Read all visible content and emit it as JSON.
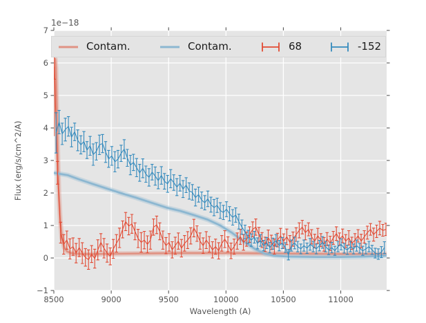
{
  "colors": {
    "red": "#E24A33",
    "blue": "#348ABD",
    "red_contam": "#E09384",
    "blue_contam": "#8CB7D1",
    "axes_bg": "#E5E5E5",
    "grid": "#FFFFFF",
    "tick": "#555555",
    "text": "#262626",
    "figure_bg": "#FFFFFF"
  },
  "axes": {
    "offset_text": "1e−18",
    "xlabel": "Wavelength (A)",
    "ylabel": "Flux (erg/s/cm^2/A)"
  },
  "legend": {
    "items": [
      {
        "label": "Contam.",
        "glyph": "line",
        "color_key": "red_contam"
      },
      {
        "label": "Contam.",
        "glyph": "line",
        "color_key": "blue_contam"
      },
      {
        "label": "68",
        "glyph": "errorbar",
        "color_key": "red"
      },
      {
        "label": "-152",
        "glyph": "errorbar",
        "color_key": "blue"
      }
    ]
  },
  "chart_data": {
    "type": "line",
    "title": "",
    "xlabel": "Wavelength (A)",
    "ylabel": "Flux (erg/s/cm^2/A)",
    "y_scale_offset": "1e−18",
    "xlim": [
      8500,
      11400
    ],
    "ylim": [
      -1,
      7
    ],
    "xticks": [
      8500,
      9000,
      9500,
      10000,
      10500,
      11000
    ],
    "yticks": [
      -1,
      0,
      1,
      2,
      3,
      4,
      5,
      6,
      7
    ],
    "grid": true,
    "legend_position": "upper center horizontal",
    "series": [
      {
        "name": "Contam.",
        "type": "line",
        "color_key": "red_contam",
        "x": [
          8500,
          8506,
          8512,
          8518,
          8526,
          8534,
          8544,
          8556,
          8570,
          8590,
          8615,
          8650,
          8700,
          8800,
          9000,
          9300,
          9600,
          10000,
          10400,
          10800,
          11100,
          11400
        ],
        "y": [
          3.75,
          5.3,
          6.12,
          5.85,
          4.6,
          3.2,
          2.0,
          1.15,
          0.62,
          0.33,
          0.2,
          0.15,
          0.13,
          0.12,
          0.13,
          0.14,
          0.15,
          0.15,
          0.14,
          0.13,
          0.12,
          0.12
        ]
      },
      {
        "name": "Contam.",
        "type": "line",
        "color_key": "blue_contam",
        "x": [
          8500,
          8620,
          8720,
          8820,
          8950,
          9080,
          9220,
          9350,
          9480,
          9600,
          9720,
          9840,
          9950,
          10050,
          10150,
          10250,
          10340,
          10420,
          10550,
          10800,
          11000,
          11200,
          11350,
          11400
        ],
        "y": [
          2.62,
          2.55,
          2.42,
          2.3,
          2.15,
          2.0,
          1.85,
          1.7,
          1.55,
          1.45,
          1.32,
          1.18,
          1.0,
          0.78,
          0.52,
          0.28,
          0.13,
          0.07,
          0.04,
          0.03,
          0.03,
          0.04,
          0.06,
          0.08
        ]
      },
      {
        "name": "68",
        "type": "errorbar",
        "color_key": "red",
        "x_start": 8505,
        "x_step": 27,
        "y": [
          5.88,
          2.62,
          0.78,
          0.42,
          0.55,
          0.28,
          0.35,
          0.15,
          0.32,
          0.15,
          0.02,
          -0.05,
          0.12,
          -0.02,
          0.25,
          0.48,
          0.3,
          0.15,
          0.05,
          0.28,
          0.45,
          0.62,
          0.88,
          1.12,
          0.98,
          1.05,
          0.82,
          0.6,
          0.48,
          0.55,
          0.42,
          0.55,
          0.95,
          1.02,
          0.82,
          0.55,
          0.38,
          0.48,
          0.25,
          0.38,
          0.52,
          0.3,
          0.45,
          0.55,
          0.68,
          0.92,
          0.75,
          0.52,
          0.38,
          0.55,
          0.42,
          0.25,
          0.35,
          0.22,
          0.45,
          0.58,
          0.42,
          0.22,
          0.35,
          0.52,
          0.65,
          0.48,
          0.58,
          0.72,
          0.88,
          0.95,
          0.72,
          0.55,
          0.42,
          0.62,
          0.48,
          0.35,
          0.55,
          0.68,
          0.52,
          0.65,
          0.48,
          0.58,
          0.72,
          0.85,
          0.95,
          0.78,
          0.88,
          0.65,
          0.52,
          0.68,
          0.55,
          0.42,
          0.58,
          0.45,
          0.62,
          0.75,
          0.58,
          0.68,
          0.52,
          0.62,
          0.45,
          0.55,
          0.68,
          0.52,
          0.65,
          0.78,
          0.88,
          0.72,
          0.82,
          0.92,
          0.85,
          0.88
        ],
        "yerr": [
          0.38,
          0.35,
          0.32,
          0.3,
          0.28,
          0.31,
          0.27,
          0.3,
          0.28,
          0.32,
          0.27,
          0.3,
          0.26,
          0.29,
          0.31,
          0.27,
          0.3,
          0.28,
          0.26,
          0.29,
          0.27,
          0.3,
          0.26,
          0.28,
          0.27,
          0.29,
          0.26,
          0.28,
          0.3,
          0.27,
          0.26,
          0.28,
          0.25,
          0.27,
          0.26,
          0.28,
          0.25,
          0.27,
          0.25,
          0.26,
          0.25,
          0.27,
          0.24,
          0.26,
          0.25,
          0.27,
          0.24,
          0.25,
          0.24,
          0.26,
          0.24,
          0.25,
          0.23,
          0.25,
          0.24,
          0.26,
          0.23,
          0.24,
          0.23,
          0.25,
          0.23,
          0.24,
          0.22,
          0.24,
          0.23,
          0.25,
          0.22,
          0.23,
          0.22,
          0.24,
          0.22,
          0.23,
          0.21,
          0.23,
          0.22,
          0.24,
          0.21,
          0.22,
          0.21,
          0.23,
          0.21,
          0.22,
          0.2,
          0.22,
          0.21,
          0.23,
          0.2,
          0.21,
          0.2,
          0.22,
          0.2,
          0.21,
          0.19,
          0.21,
          0.2,
          0.22,
          0.19,
          0.2,
          0.19,
          0.21,
          0.19,
          0.2,
          0.18,
          0.2,
          0.19,
          0.21,
          0.18,
          0.19
        ]
      },
      {
        "name": "-152",
        "type": "errorbar",
        "color_key": "blue",
        "x_start": 8519,
        "x_step": 27,
        "y": [
          3.85,
          4.18,
          3.82,
          3.95,
          4.05,
          3.72,
          3.88,
          3.62,
          3.48,
          3.58,
          3.32,
          3.45,
          3.18,
          3.28,
          3.48,
          3.52,
          3.26,
          3.05,
          3.14,
          2.96,
          3.04,
          3.22,
          3.35,
          3.08,
          2.86,
          2.94,
          2.78,
          2.62,
          2.76,
          2.58,
          2.48,
          2.64,
          2.52,
          2.38,
          2.54,
          2.36,
          2.28,
          2.44,
          2.32,
          2.18,
          2.3,
          2.12,
          2.24,
          2.06,
          2.02,
          1.86,
          1.95,
          1.78,
          1.7,
          1.82,
          1.64,
          1.55,
          1.62,
          1.46,
          1.4,
          1.5,
          1.36,
          1.25,
          1.32,
          1.12,
          0.95,
          0.8,
          0.65,
          0.55,
          0.64,
          0.45,
          0.54,
          0.38,
          0.46,
          0.32,
          0.44,
          0.54,
          0.38,
          0.46,
          0.32,
          0.1,
          0.38,
          0.46,
          0.35,
          0.28,
          0.38,
          0.3,
          0.42,
          0.35,
          0.28,
          0.38,
          0.48,
          0.35,
          0.25,
          0.32,
          0.22,
          0.35,
          0.42,
          0.3,
          0.25,
          0.35,
          0.28,
          0.38,
          0.3,
          0.22,
          0.28,
          0.35,
          0.25,
          0.15,
          0.12,
          0.18,
          0.32
        ],
        "yerr": [
          0.62,
          0.36,
          0.33,
          0.35,
          0.3,
          0.3,
          0.27,
          0.32,
          0.28,
          0.31,
          0.26,
          0.29,
          0.33,
          0.27,
          0.3,
          0.28,
          0.32,
          0.26,
          0.29,
          0.31,
          0.27,
          0.25,
          0.29,
          0.26,
          0.3,
          0.25,
          0.28,
          0.26,
          0.29,
          0.25,
          0.27,
          0.24,
          0.28,
          0.25,
          0.27,
          0.24,
          0.26,
          0.28,
          0.24,
          0.26,
          0.24,
          0.26,
          0.23,
          0.25,
          0.24,
          0.26,
          0.23,
          0.25,
          0.22,
          0.24,
          0.23,
          0.25,
          0.22,
          0.24,
          0.22,
          0.23,
          0.22,
          0.24,
          0.22,
          0.23,
          0.22,
          0.21,
          0.2,
          0.19,
          0.18,
          0.17,
          0.18,
          0.16,
          0.17,
          0.16,
          0.17,
          0.18,
          0.16,
          0.17,
          0.15,
          0.16,
          0.17,
          0.18,
          0.16,
          0.15,
          0.17,
          0.16,
          0.18,
          0.16,
          0.15,
          0.16,
          0.18,
          0.16,
          0.15,
          0.16,
          0.14,
          0.16,
          0.17,
          0.15,
          0.14,
          0.16,
          0.15,
          0.17,
          0.15,
          0.14,
          0.15,
          0.16,
          0.14,
          0.15,
          0.16,
          0.17,
          0.18
        ]
      }
    ]
  }
}
